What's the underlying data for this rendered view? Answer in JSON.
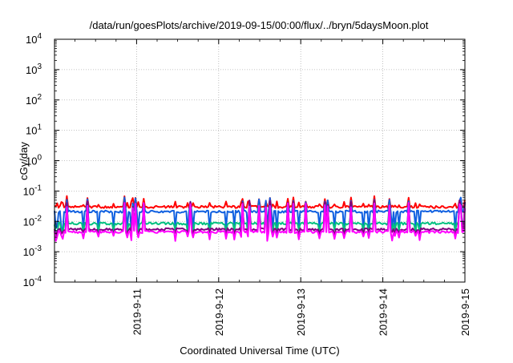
{
  "chart_data": {
    "type": "line",
    "title": "/data/run/goesPlots/archive/2019-09-15/00:00/flux/../bryn/5daysMoon.plot",
    "xlabel": "Coordinated Universal Time (UTC)",
    "ylabel": "cGy/day",
    "xlim": [
      "2019-09-10 00:00",
      "2019-09-15 00:00"
    ],
    "ylim": [
      0.0001,
      10000
    ],
    "yscale": "log",
    "grid": true,
    "x_ticks": [
      "2019-9-11",
      "2019-9-12",
      "2019-9-13",
      "2019-9-14",
      "2019-9-15"
    ],
    "y_ticks": [
      {
        "base": "10",
        "exp": "4"
      },
      {
        "base": "10",
        "exp": "3"
      },
      {
        "base": "10",
        "exp": "2"
      },
      {
        "base": "10",
        "exp": "1"
      },
      {
        "base": "10",
        "exp": "0"
      },
      {
        "base": "10",
        "exp": "-1"
      },
      {
        "base": "10",
        "exp": "-2"
      },
      {
        "base": "10",
        "exp": "-3"
      },
      {
        "base": "10",
        "exp": "-4"
      }
    ],
    "series": [
      {
        "color": "#ff0000",
        "base": 0.03,
        "spike": 0.055,
        "dip": 0.025
      },
      {
        "color": "#1060e0",
        "base": 0.021,
        "spike": 0.05,
        "dip": 0.006
      },
      {
        "color": "#00c080",
        "base": 0.0085,
        "spike": 0.03,
        "dip": 0.0045
      },
      {
        "color": "#800080",
        "base": 0.0055,
        "spike": 0.04,
        "dip": 0.004
      },
      {
        "color": "#ff00ff",
        "base": 0.0045,
        "spike": 0.035,
        "dip": 0.0028
      }
    ]
  }
}
